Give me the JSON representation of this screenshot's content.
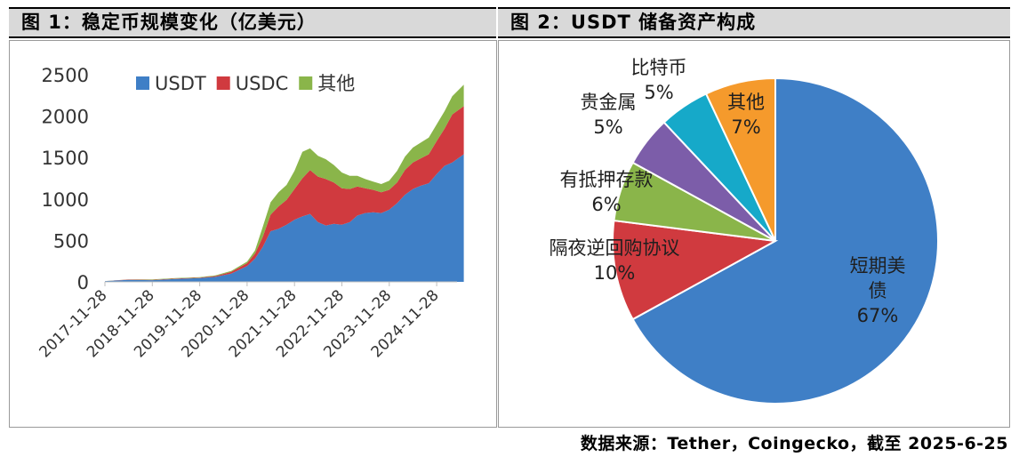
{
  "figure1": {
    "title": "图 1：稳定币规模变化（亿美元）",
    "chart_data": {
      "type": "area",
      "stacked": true,
      "title": "图 1：稳定币规模变化（亿美元）",
      "xlabel": "",
      "ylabel": "",
      "ylim": [
        0,
        2500
      ],
      "yticks": [
        "0",
        "500",
        "1000",
        "1500",
        "2000",
        "2500"
      ],
      "xticks": [
        "2017-11-28",
        "2018-11-28",
        "2019-11-28",
        "2020-11-28",
        "2021-11-28",
        "2022-11-28",
        "2023-11-28",
        "2024-11-28"
      ],
      "legend_position": "top",
      "x": [
        "2017-11-28",
        "2018-05-28",
        "2018-11-28",
        "2019-05-28",
        "2019-11-28",
        "2020-03-28",
        "2020-07-28",
        "2020-11-28",
        "2021-01-28",
        "2021-03-28",
        "2021-05-28",
        "2021-07-28",
        "2021-09-28",
        "2021-11-28",
        "2022-01-28",
        "2022-03-28",
        "2022-05-28",
        "2022-07-28",
        "2022-09-28",
        "2022-11-28",
        "2023-01-28",
        "2023-03-28",
        "2023-05-28",
        "2023-07-28",
        "2023-09-28",
        "2023-11-28",
        "2024-01-28",
        "2024-03-28",
        "2024-05-28",
        "2024-07-28",
        "2024-09-28",
        "2024-11-28",
        "2025-01-28",
        "2025-03-28",
        "2025-06-25"
      ],
      "series": [
        {
          "name": "USDT",
          "color": "#3f7fc6",
          "values": [
            10,
            25,
            20,
            35,
            45,
            60,
            100,
            190,
            280,
            420,
            610,
            640,
            690,
            750,
            790,
            820,
            720,
            680,
            700,
            690,
            720,
            800,
            830,
            840,
            830,
            870,
            950,
            1050,
            1120,
            1160,
            1190,
            1300,
            1400,
            1440,
            1540
          ]
        },
        {
          "name": "USDC",
          "color": "#d03a3f",
          "values": [
            0,
            3,
            5,
            5,
            6,
            10,
            20,
            35,
            60,
            120,
            200,
            270,
            300,
            370,
            460,
            530,
            550,
            560,
            500,
            440,
            400,
            350,
            300,
            270,
            250,
            240,
            250,
            300,
            320,
            330,
            350,
            400,
            450,
            580,
            580
          ]
        },
        {
          "name": "其他",
          "color": "#8ab54a",
          "values": [
            0,
            2,
            5,
            5,
            5,
            8,
            12,
            20,
            40,
            120,
            150,
            170,
            180,
            220,
            320,
            260,
            250,
            240,
            210,
            190,
            160,
            130,
            110,
            100,
            100,
            110,
            140,
            160,
            180,
            190,
            200,
            200,
            210,
            220,
            260
          ]
        }
      ]
    }
  },
  "figure2": {
    "title": "图 2：USDT 储备资产构成",
    "chart_data": {
      "type": "pie",
      "title": "图 2：USDT 储备资产构成",
      "slices": [
        {
          "label": "短期美债",
          "label_lines": [
            "短期美",
            "债"
          ],
          "pct_text": "67%",
          "value": 67,
          "color": "#3f7fc6"
        },
        {
          "label": "隔夜逆回购协议",
          "label_lines": [
            "隔夜逆回购协议"
          ],
          "pct_text": "10%",
          "value": 10,
          "color": "#d03a3f"
        },
        {
          "label": "有抵押存款",
          "label_lines": [
            "有抵押存款"
          ],
          "pct_text": "6%",
          "value": 6,
          "color": "#8ab54a"
        },
        {
          "label": "贵金属",
          "label_lines": [
            "贵金属"
          ],
          "pct_text": "5%",
          "value": 5,
          "color": "#7c5da9"
        },
        {
          "label": "比特币",
          "label_lines": [
            "比特币"
          ],
          "pct_text": "5%",
          "value": 5,
          "color": "#16a9c9"
        },
        {
          "label": "其他",
          "label_lines": [
            "其他"
          ],
          "pct_text": "7%",
          "value": 7,
          "color": "#f59a2c"
        }
      ]
    }
  },
  "source": "数据来源：Tether，Coingecko，截至 2025-6-25"
}
